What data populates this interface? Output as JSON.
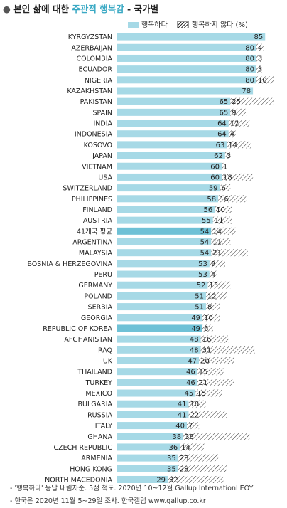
{
  "title_prefix": "본인 삶에 대한 ",
  "title_highlight": "주관적 행복감",
  "title_suffix": " - 국가별",
  "legend": {
    "positive": "행복하다",
    "negative": "행복하지 않다 (%)"
  },
  "colors": {
    "positive": "#a6d9e6",
    "positive_highlight": "#6fc1d6",
    "negative_stroke": "#333333"
  },
  "notes": [
    "- '행복하다' 응답 내림차순. 5점 척도. 2020년 10~12월 Gallup Internationl EOY",
    "- 한국은 2020년 11월 5~29일 조사. 한국갤럽 www.gallup.co.kr"
  ],
  "chart_data": {
    "type": "bar",
    "orientation": "horizontal",
    "stacked": true,
    "categories": [
      "KYRGYZSTAN",
      "AZERBAIJAN",
      "COLOMBIA",
      "ECUADOR",
      "NIGERIA",
      "KAZAKHSTAN",
      "PAKISTAN",
      "SPAIN",
      "INDIA",
      "INDONESIA",
      "KOSOVO",
      "JAPAN",
      "VIETNAM",
      "USA",
      "SWITZERLAND",
      "PHILIPPINES",
      "FINLAND",
      "AUSTRIA",
      "41개국 평균",
      "ARGENTINA",
      "MALAYSIA",
      "BOSNIA & HERZEGOVINA",
      "PERU",
      "GERMANY",
      "POLAND",
      "SERBIA",
      "GEORGIA",
      "REPUBLIC OF KOREA",
      "AFGHANISTAN",
      "IRAQ",
      "UK",
      "THAILAND",
      "TURKEY",
      "MEXICO",
      "BULGARIA",
      "RUSSIA",
      "ITALY",
      "GHANA",
      "CZECH REPUBLIC",
      "ARMENIA",
      "HONG KONG",
      "NORTH MACEDONIA"
    ],
    "series": [
      {
        "name": "행복하다",
        "values": [
          85,
          80,
          80,
          80,
          80,
          78,
          65,
          65,
          64,
          64,
          63,
          62,
          60,
          60,
          59,
          58,
          56,
          55,
          54,
          54,
          54,
          53,
          53,
          52,
          51,
          51,
          49,
          49,
          48,
          48,
          47,
          46,
          46,
          45,
          41,
          41,
          40,
          38,
          36,
          35,
          35,
          29
        ]
      },
      {
        "name": "행복하지 않다 (%)",
        "values": [
          null,
          4,
          3,
          3,
          10,
          null,
          25,
          9,
          12,
          4,
          14,
          3,
          1,
          18,
          6,
          16,
          10,
          11,
          14,
          11,
          21,
          9,
          4,
          13,
          12,
          8,
          10,
          6,
          16,
          31,
          20,
          15,
          21,
          15,
          10,
          22,
          7,
          38,
          14,
          23,
          28,
          32
        ]
      }
    ],
    "highlight_categories": [
      "41개국 평균",
      "REPUBLIC OF KOREA"
    ]
  }
}
